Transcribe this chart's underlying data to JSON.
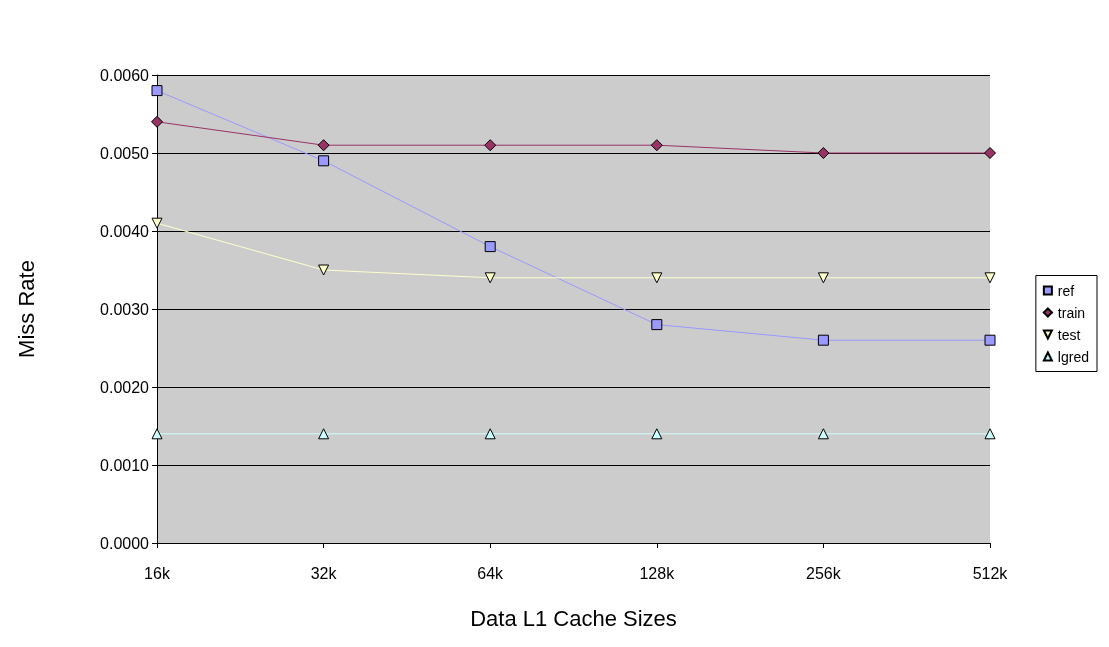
{
  "chart_data": {
    "type": "line",
    "xlabel": "Data L1 Cache Sizes",
    "ylabel": "Miss Rate",
    "categories": [
      "16k",
      "32k",
      "64k",
      "128k",
      "256k",
      "512k"
    ],
    "series": [
      {
        "name": "ref",
        "color": "#9999ff",
        "marker": "square",
        "values": [
          0.0058,
          0.0049,
          0.0038,
          0.0028,
          0.0026,
          0.0026
        ]
      },
      {
        "name": "train",
        "color": "#993366",
        "marker": "diamond",
        "values": [
          0.0054,
          0.0051,
          0.0051,
          0.0051,
          0.005,
          0.005
        ]
      },
      {
        "name": "test",
        "color": "#ffffcc",
        "marker": "triangle_down",
        "values": [
          0.0041,
          0.0035,
          0.0034,
          0.0034,
          0.0034,
          0.0034
        ]
      },
      {
        "name": "lgred",
        "color": "#ccffff",
        "marker": "triangle",
        "values": [
          0.0014,
          0.0014,
          0.0014,
          0.0014,
          0.0014,
          0.0014
        ]
      }
    ],
    "ylim": [
      0,
      0.006
    ],
    "yticks": [
      {
        "value": 0,
        "label": "0.0000"
      },
      {
        "value": 0.001,
        "label": "0.0010"
      },
      {
        "value": 0.002,
        "label": "0.0020"
      },
      {
        "value": 0.003,
        "label": "0.0030"
      },
      {
        "value": 0.004,
        "label": "0.0040"
      },
      {
        "value": 0.005,
        "label": "0.0050"
      },
      {
        "value": 0.006,
        "label": "0.0060"
      }
    ],
    "grid": "y",
    "legend": "right"
  }
}
